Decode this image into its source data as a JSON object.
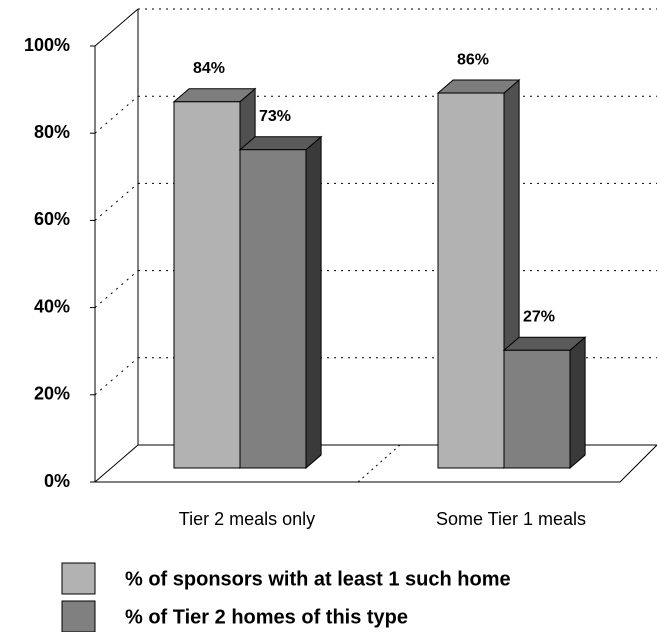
{
  "chart_data": {
    "type": "bar",
    "categories": [
      "Tier 2 meals only",
      "Some Tier 1 meals"
    ],
    "series": [
      {
        "name": "% of sponsors with at least 1 such home",
        "color": "#b2b2b2",
        "values": [
          84,
          86
        ],
        "value_labels": [
          "84%",
          "86%"
        ]
      },
      {
        "name": "% of Tier 2 homes of this type",
        "color": "#808080",
        "values": [
          73,
          27
        ],
        "value_labels": [
          "73%",
          "27%"
        ]
      }
    ],
    "ylim": [
      0,
      100
    ],
    "yticks": [
      {
        "value": 0,
        "label": "0%"
      },
      {
        "value": 20,
        "label": "20%"
      },
      {
        "value": 40,
        "label": "40%"
      },
      {
        "value": 60,
        "label": "60%"
      },
      {
        "value": 80,
        "label": "80%"
      },
      {
        "value": 100,
        "label": "100%"
      }
    ],
    "grid": true
  }
}
